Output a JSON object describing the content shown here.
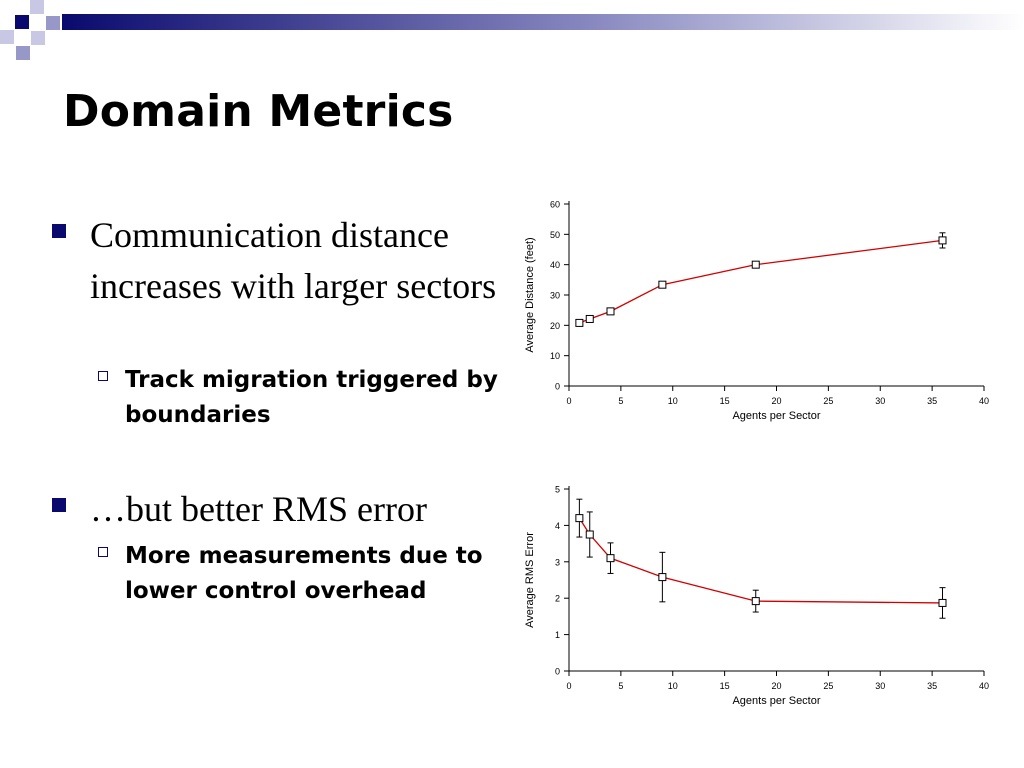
{
  "slide": {
    "title": "Domain Metrics",
    "bullets": [
      {
        "text": "Communication distance increases with larger sectors",
        "sub": "Track migration triggered by boundaries"
      },
      {
        "text": "…but better RMS error",
        "sub": "More measurements due to lower control overhead"
      }
    ]
  },
  "colors": {
    "accent": "#0a0a6e",
    "line": "#d40000",
    "deco_light": "#9898c8"
  },
  "chart_data": [
    {
      "type": "line",
      "xlabel": "Agents per Sector",
      "ylabel": "Average Distance (feet)",
      "xlim": [
        0,
        40
      ],
      "ylim": [
        0,
        60
      ],
      "xticks": [
        0,
        5,
        10,
        15,
        20,
        25,
        30,
        35,
        40
      ],
      "yticks": [
        0,
        10,
        20,
        30,
        40,
        50,
        60
      ],
      "grid": false,
      "series": [
        {
          "x": [
            1,
            2,
            4,
            9,
            18,
            36
          ],
          "y": [
            20.8,
            22.1,
            24.6,
            33.4,
            40.0,
            48.0
          ],
          "err": [
            0,
            0,
            0,
            0,
            0,
            2.5
          ]
        }
      ]
    },
    {
      "type": "line",
      "xlabel": "Agents per Sector",
      "ylabel": "Average RMS Error",
      "xlim": [
        0,
        40
      ],
      "ylim": [
        0,
        5
      ],
      "xticks": [
        0,
        5,
        10,
        15,
        20,
        25,
        30,
        35,
        40
      ],
      "yticks": [
        0,
        1,
        2,
        3,
        4,
        5
      ],
      "grid": false,
      "series": [
        {
          "x": [
            1,
            2,
            4,
            9,
            18,
            36
          ],
          "y": [
            4.2,
            3.75,
            3.1,
            2.58,
            1.92,
            1.87
          ],
          "err": [
            0.52,
            0.62,
            0.42,
            0.68,
            0.3,
            0.42
          ]
        }
      ]
    }
  ]
}
